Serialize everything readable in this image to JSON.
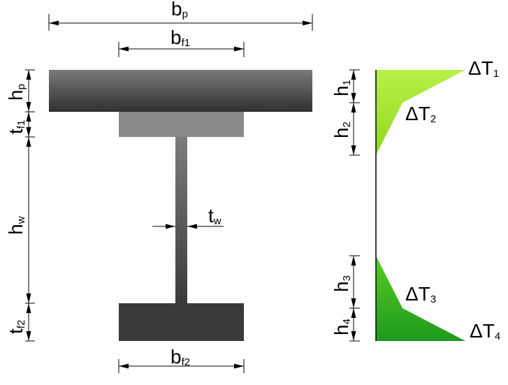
{
  "labels": {
    "bp": {
      "main": "b",
      "sub": "p"
    },
    "bf1": {
      "main": "b",
      "sub": "f1"
    },
    "bf2": {
      "main": "b",
      "sub": "f2"
    },
    "hp": {
      "main": "h",
      "sub": "p"
    },
    "tf1": {
      "main": "t",
      "sub": "f1"
    },
    "hw": {
      "main": "h",
      "sub": "w"
    },
    "tf2": {
      "main": "t",
      "sub": "f2"
    },
    "tw": {
      "main": "t",
      "sub": "w"
    },
    "h1": {
      "main": "h",
      "sub": "1"
    },
    "h2": {
      "main": "h",
      "sub": "2"
    },
    "h3": {
      "main": "h",
      "sub": "3"
    },
    "h4": {
      "main": "h",
      "sub": "4"
    },
    "dT1": {
      "main": "ΔT",
      "sub": "1"
    },
    "dT2": {
      "main": "ΔT",
      "sub": "2"
    },
    "dT3": {
      "main": "ΔT",
      "sub": "3"
    },
    "dT4": {
      "main": "ΔT",
      "sub": "4"
    }
  },
  "colors": {
    "slab_top": "#7a7a7a",
    "slab_bottom": "#303030",
    "top_flange": "#8a8a8a",
    "web_top": "#7c7c7c",
    "web_bottom": "#3a3a3a",
    "bottom_flange": "#3a3a3a",
    "gradient_top_light": "#b8f048",
    "gradient_top_dark": "#8ed81e",
    "gradient_bottom_light": "#58cc22",
    "gradient_bottom_dark": "#1e9a1e"
  }
}
